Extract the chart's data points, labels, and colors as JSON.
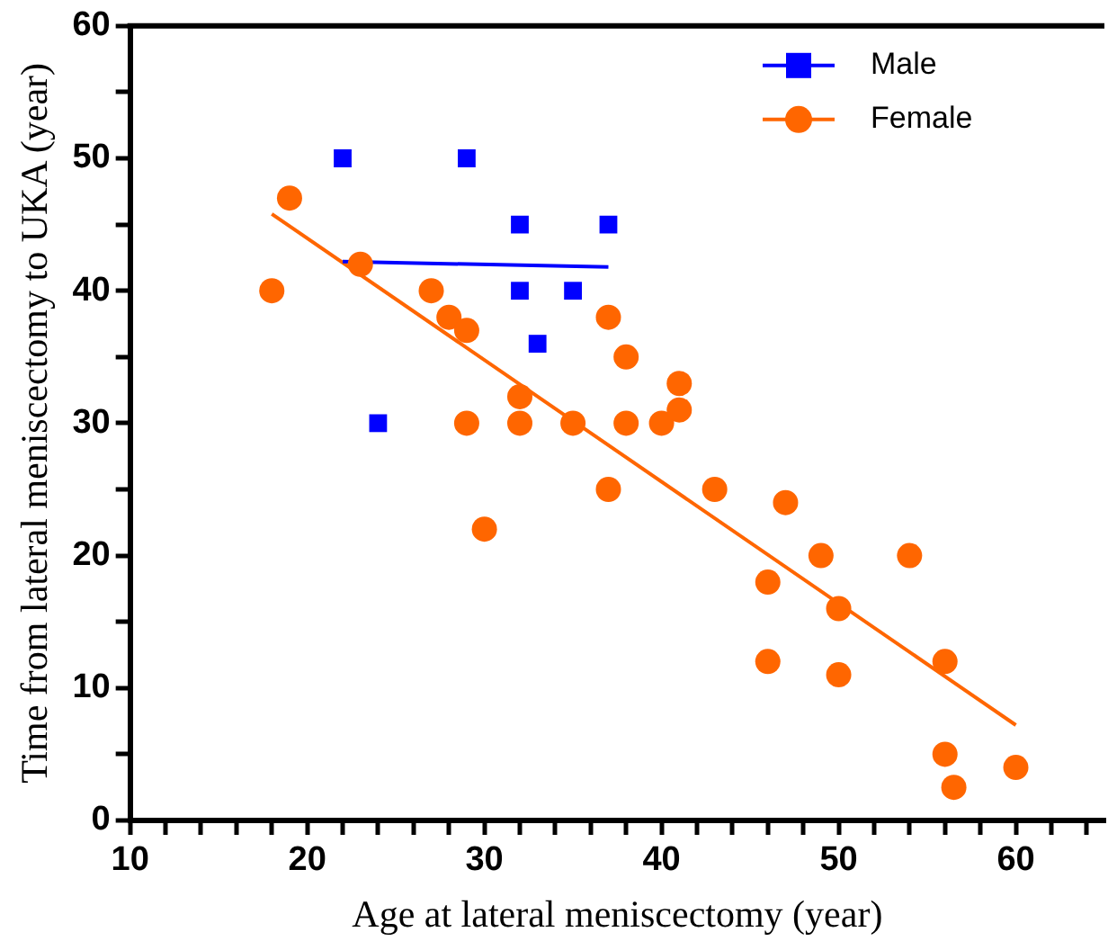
{
  "chart_data": {
    "type": "scatter",
    "xlabel": "Age at lateral meniscectomy (year)",
    "ylabel": "Time from lateral meniscectomy to UKA (year)",
    "xlim": [
      10,
      65
    ],
    "ylim": [
      0,
      60
    ],
    "xticks": [
      10,
      {
        "value": 12,
        "label": null
      },
      {
        "value": 14,
        "label": null
      },
      {
        "value": 16,
        "label": null
      },
      {
        "value": 18,
        "label": null
      },
      20,
      {
        "value": 22,
        "label": null
      },
      {
        "value": 24,
        "label": null
      },
      {
        "value": 26,
        "label": null
      },
      {
        "value": 28,
        "label": null
      },
      30,
      {
        "value": 32,
        "label": null
      },
      {
        "value": 34,
        "label": null
      },
      {
        "value": 36,
        "label": null
      },
      {
        "value": 38,
        "label": null
      },
      40,
      {
        "value": 42,
        "label": null
      },
      {
        "value": 44,
        "label": null
      },
      {
        "value": 46,
        "label": null
      },
      {
        "value": 48,
        "label": null
      },
      50,
      {
        "value": 52,
        "label": null
      },
      {
        "value": 54,
        "label": null
      },
      {
        "value": 56,
        "label": null
      },
      {
        "value": 58,
        "label": null
      },
      60,
      {
        "value": 62,
        "label": null
      },
      {
        "value": 64,
        "label": null
      }
    ],
    "yticks": [
      0,
      {
        "value": 5,
        "label": null
      },
      10,
      {
        "value": 15,
        "label": null
      },
      20,
      {
        "value": 25,
        "label": null
      },
      30,
      {
        "value": 35,
        "label": null
      },
      40,
      {
        "value": 45,
        "label": null
      },
      50,
      {
        "value": 55,
        "label": null
      },
      60
    ],
    "grid": false,
    "legend": "top right",
    "series": [
      {
        "name": "Male",
        "color": "#0000ff",
        "marker": "square",
        "x": [
          22,
          29,
          32,
          37,
          32,
          35,
          33,
          24
        ],
        "values": [
          50,
          50,
          45,
          45,
          40,
          40,
          36,
          30
        ]
      },
      {
        "name": "Female",
        "color": "#ff6600",
        "marker": "circle",
        "x": [
          18,
          19,
          23,
          27,
          28,
          29,
          29,
          30,
          32,
          32,
          35,
          37,
          37,
          38,
          38,
          40,
          41,
          41,
          43,
          46,
          46,
          47,
          49,
          50,
          50,
          54,
          56,
          56,
          56.5,
          60
        ],
        "values": [
          40,
          47,
          42,
          40,
          38,
          37,
          30,
          22,
          32,
          30,
          30,
          38,
          25,
          35,
          30,
          30,
          33,
          31,
          25,
          18,
          12,
          24,
          20,
          16,
          11,
          20,
          12,
          5,
          2.5,
          4
        ]
      },
      {
        "type": "line",
        "color": "#0000ff",
        "marker": "none",
        "x": [
          22,
          37
        ],
        "values": [
          42.2,
          41.8
        ]
      },
      {
        "type": "line",
        "color": "#ff6600",
        "marker": "none",
        "x": [
          18,
          60
        ],
        "values": [
          45.8,
          7.2
        ]
      }
    ]
  }
}
